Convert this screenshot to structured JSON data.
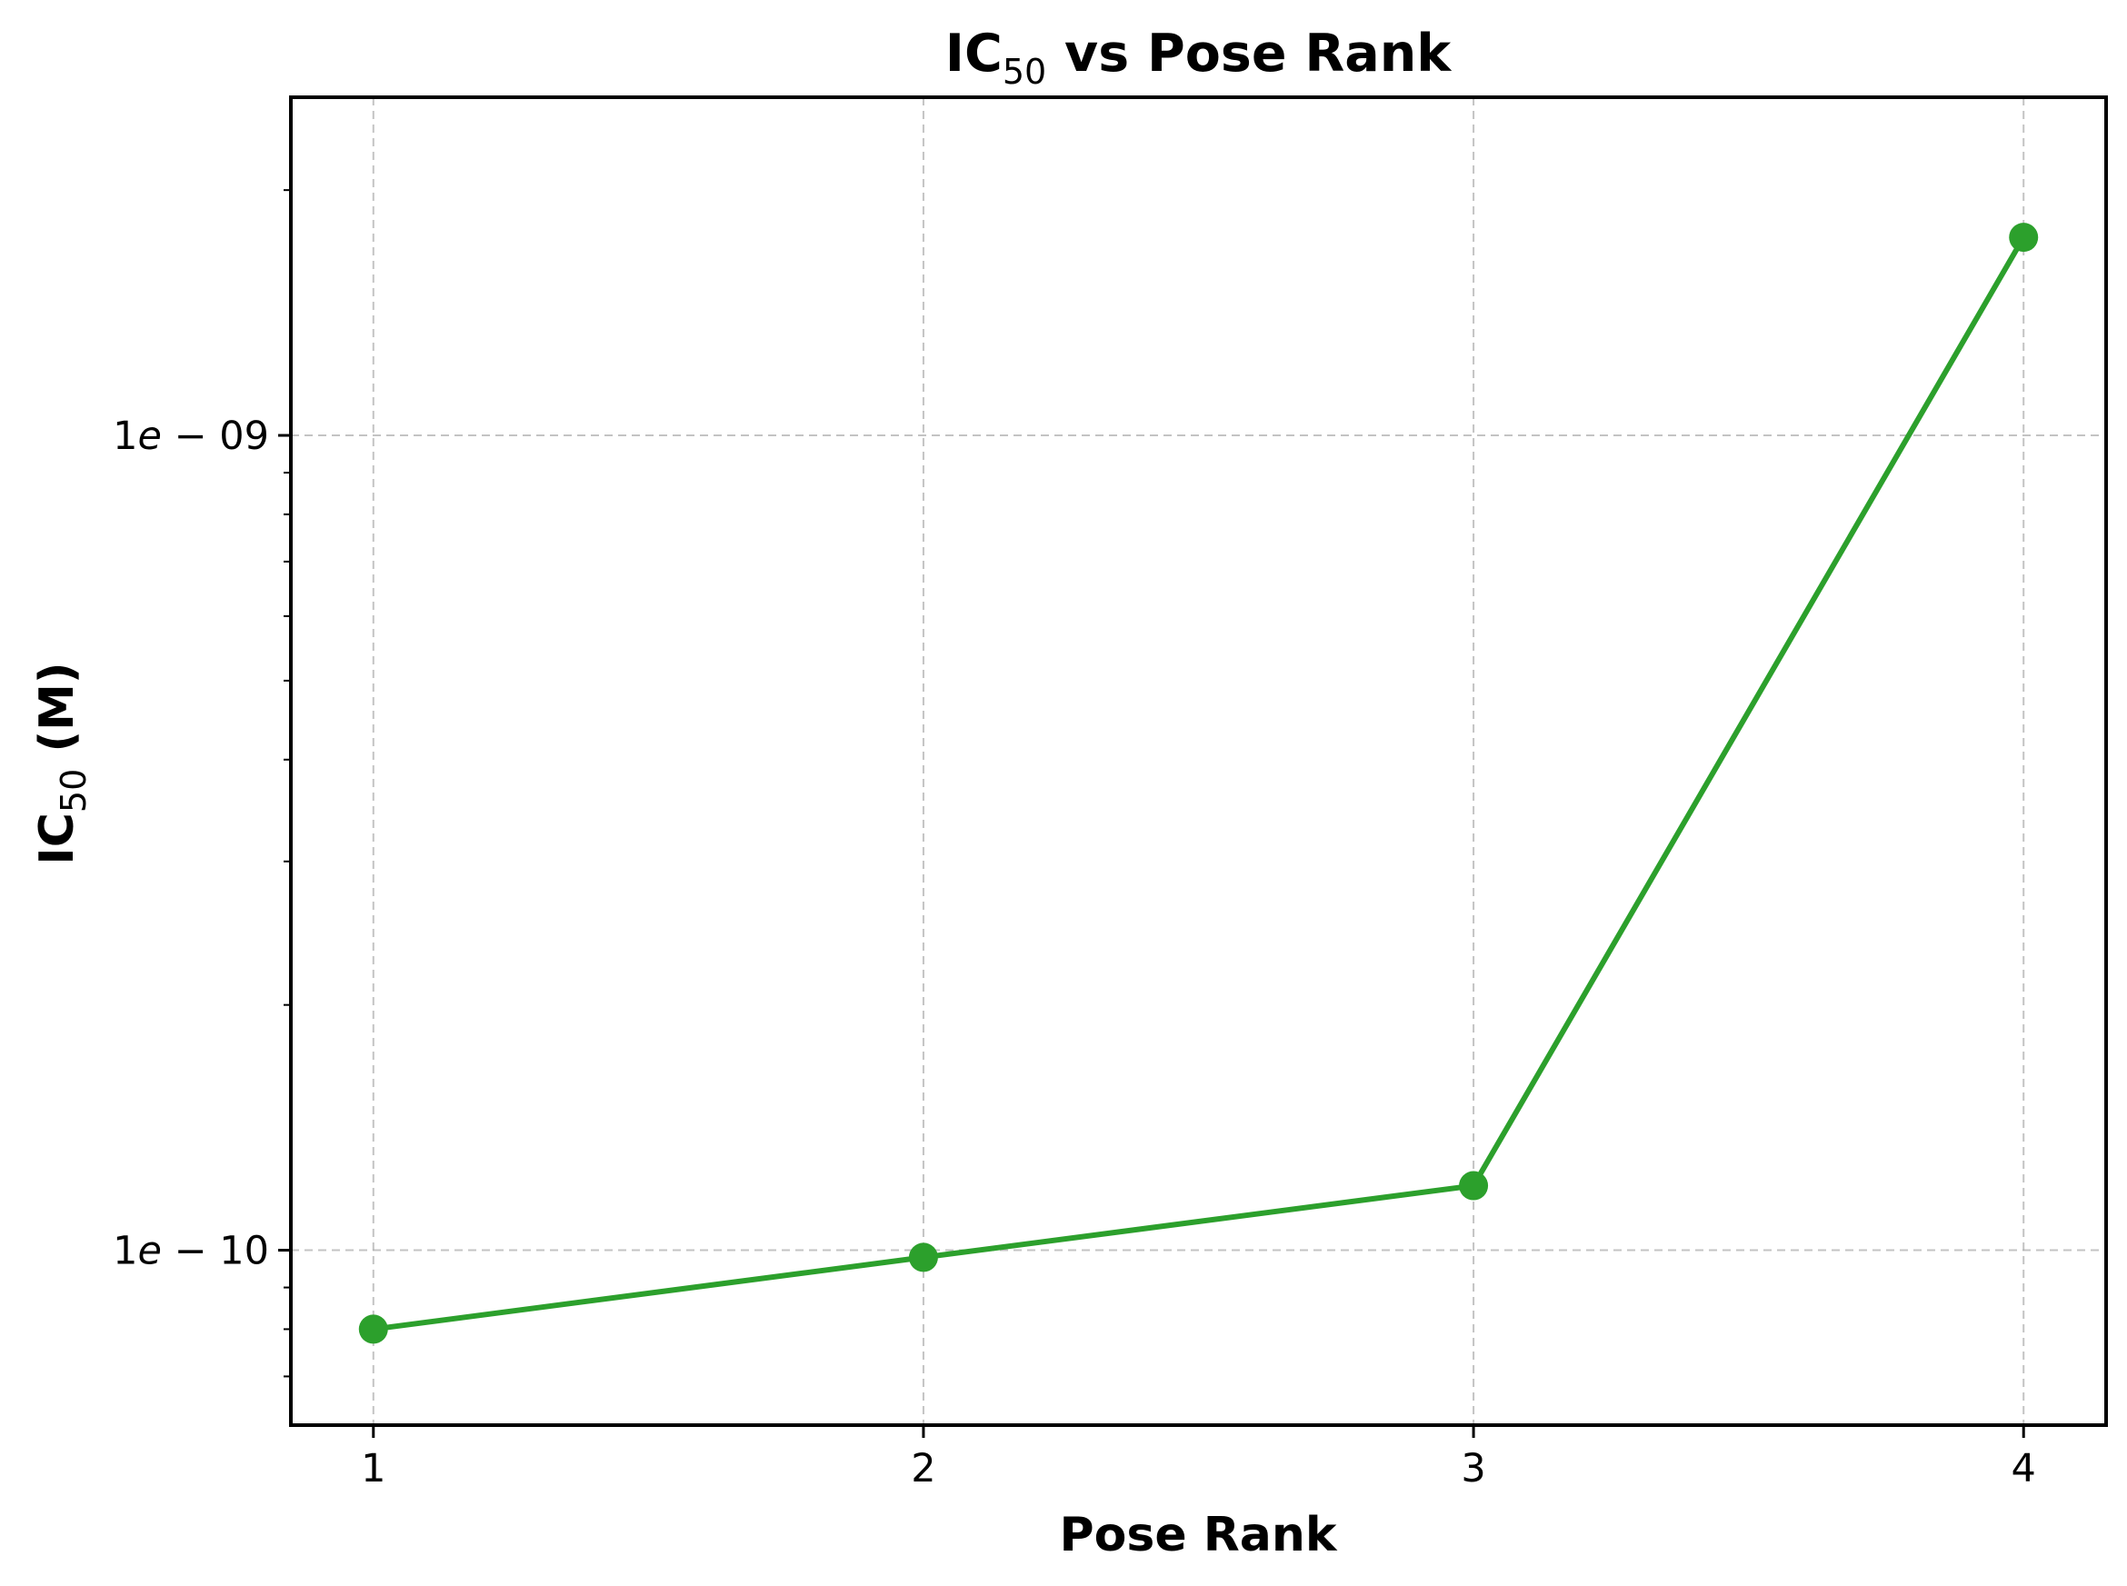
{
  "chart_data": {
    "type": "line",
    "title_main": "IC",
    "title_sub": "50",
    "title_rest": " vs Pose Rank",
    "xlabel": "Pose Rank",
    "ylabel_main": "IC",
    "ylabel_sub": "50",
    "ylabel_rest": " (M)",
    "x": [
      1,
      2,
      3,
      4
    ],
    "x_tick_labels": [
      "1",
      "2",
      "3",
      "4"
    ],
    "y": [
      8e-11,
      9.8e-11,
      1.2e-10,
      1.75e-09
    ],
    "y_scale": "log",
    "ylim": [
      6.1e-11,
      2.6e-09
    ],
    "xlim": [
      0.85,
      4.15
    ],
    "y_major_ticks": [
      {
        "value": 1e-10,
        "label_mant": "1",
        "label_e": "e",
        "label_exp": "10"
      },
      {
        "value": 1e-09,
        "label_mant": "1",
        "label_e": "e",
        "label_exp": "09"
      }
    ],
    "grid": true,
    "color": "#2ca02c",
    "marker": "circle"
  }
}
